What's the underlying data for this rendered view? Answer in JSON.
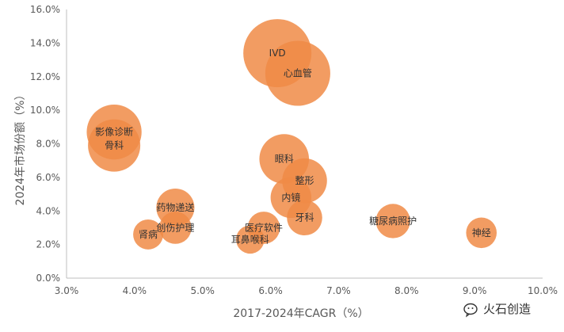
{
  "chart_data": {
    "type": "scatter",
    "title": "",
    "xlabel": "2017-2024年CAGR（%）",
    "ylabel": "2024年市场份额（%）",
    "xlim": [
      3.0,
      10.0
    ],
    "ylim": [
      0.0,
      16.0
    ],
    "x_ticks": [
      "3.0%",
      "4.0%",
      "5.0%",
      "6.0%",
      "7.0%",
      "8.0%",
      "9.0%",
      "10.0%"
    ],
    "y_ticks": [
      "0.0%",
      "2.0%",
      "4.0%",
      "6.0%",
      "8.0%",
      "10.0%",
      "12.0%",
      "14.0%",
      "16.0%"
    ],
    "grid": false,
    "bubble_color": "#F08B47",
    "points": [
      {
        "label": "IVD",
        "x": 6.1,
        "y": 13.4,
        "size": 13.4
      },
      {
        "label": "心血管",
        "x": 6.4,
        "y": 12.2,
        "size": 12.2
      },
      {
        "label": "影像诊断",
        "x": 3.7,
        "y": 8.7,
        "size": 8.7
      },
      {
        "label": "骨科",
        "x": 3.7,
        "y": 7.9,
        "size": 7.9
      },
      {
        "label": "眼科",
        "x": 6.2,
        "y": 7.1,
        "size": 7.1
      },
      {
        "label": "整形",
        "x": 6.5,
        "y": 5.8,
        "size": 5.8
      },
      {
        "label": "内镜",
        "x": 6.3,
        "y": 4.8,
        "size": 4.8
      },
      {
        "label": "药物递送",
        "x": 4.6,
        "y": 4.2,
        "size": 4.2
      },
      {
        "label": "牙科",
        "x": 6.5,
        "y": 3.6,
        "size": 3.6
      },
      {
        "label": "糖尿病照护",
        "x": 7.8,
        "y": 3.4,
        "size": 3.4
      },
      {
        "label": "医疗软件",
        "x": 5.9,
        "y": 3.0,
        "size": 3.0
      },
      {
        "label": "创伤护理",
        "x": 4.6,
        "y": 3.0,
        "size": 3.0
      },
      {
        "label": "神经",
        "x": 9.1,
        "y": 2.7,
        "size": 2.7
      },
      {
        "label": "肾病",
        "x": 4.2,
        "y": 2.6,
        "size": 2.6
      },
      {
        "label": "耳鼻喉科",
        "x": 5.7,
        "y": 2.3,
        "size": 2.3
      }
    ]
  },
  "watermark": {
    "text": "火石创造",
    "icon": "wechat-icon"
  }
}
